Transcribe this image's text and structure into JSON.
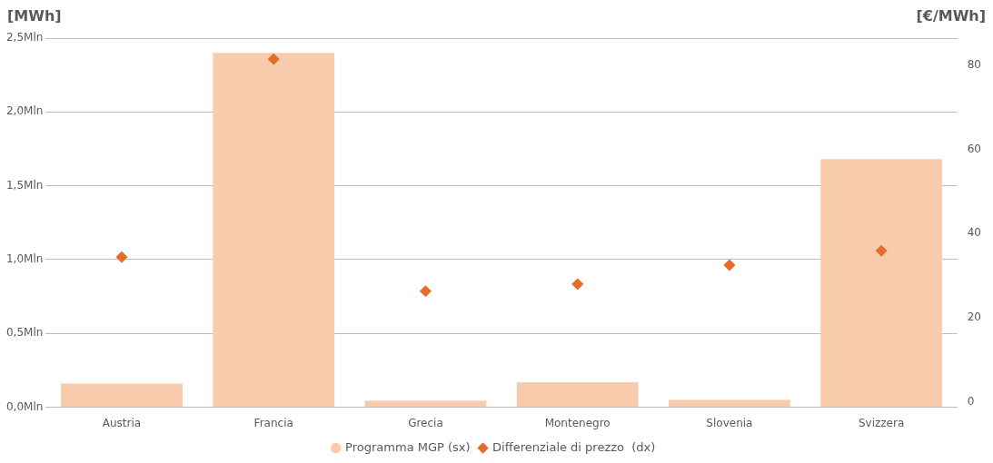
{
  "chart_data": {
    "type": "bar",
    "ylabel": "[MWh]",
    "y2label": "[€/MWh]",
    "categories": [
      "Austria",
      "Francia",
      "Grecia",
      "Montenegro",
      "Slovenia",
      "Svizzera"
    ],
    "series": [
      {
        "name": "Programma MGP (sx)",
        "color": "#f8cbad",
        "values": [
          0.16,
          2.4,
          0.045,
          0.17,
          0.05,
          1.68
        ]
      },
      {
        "name": "Differenziale di prezzo  (dx)",
        "type": "scatter",
        "axis": "y2",
        "marker": "diamond",
        "color": "#e46c29",
        "x": [
          "Austria",
          "Francia",
          "Grecia",
          "Montenegro",
          "Slovenia",
          "Svizzera"
        ],
        "values": [
          34.4,
          81.5,
          26.3,
          28.0,
          32.5,
          35.9
        ]
      }
    ],
    "ylim": [
      0,
      2.5
    ],
    "yticks": [
      {
        "value": 0,
        "label": "0,0Mln"
      },
      {
        "value": 0.5,
        "label": "0,5Mln"
      },
      {
        "value": 1,
        "label": "1,0Mln"
      },
      {
        "value": 1.5,
        "label": "1,5Mln"
      },
      {
        "value": 2,
        "label": "2,0Mln"
      },
      {
        "value": 2.5,
        "label": "2,5Mln"
      }
    ],
    "y2lim": [
      -1.3,
      86.5
    ],
    "y2ticks": [
      0,
      20,
      40,
      60,
      80
    ],
    "grid": "y",
    "legend": "bottom"
  }
}
